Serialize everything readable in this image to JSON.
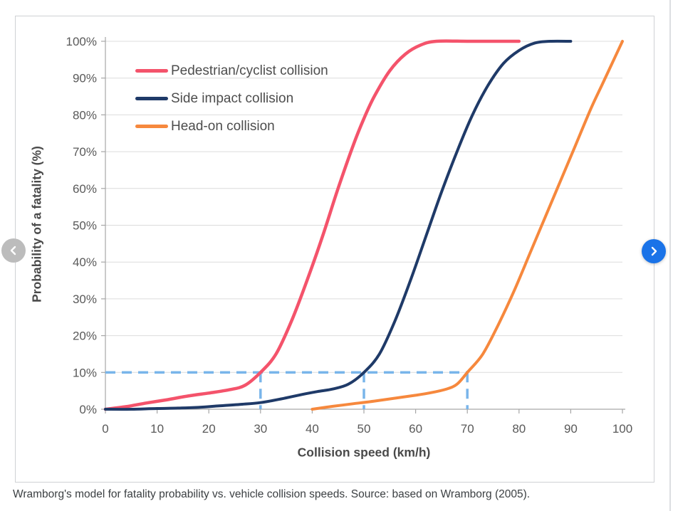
{
  "page": {
    "caption": "Wramborg's model for fatality probability vs. vehicle collision speeds. Source: based on Wramborg (2005)."
  },
  "carousel": {
    "prev_button_color": "#bcbcbc",
    "next_button_color": "#1a73e8",
    "arrow_color": "#ffffff"
  },
  "chart_data": {
    "type": "line",
    "title": "",
    "xlabel": "Collision speed (km/h)",
    "ylabel": "Probability of a fatality (%)",
    "xlim": [
      0,
      100
    ],
    "ylim": [
      0,
      100
    ],
    "x_ticks": [
      0,
      10,
      20,
      30,
      40,
      50,
      60,
      70,
      80,
      90,
      100
    ],
    "y_ticks": [
      0,
      10,
      20,
      30,
      40,
      50,
      60,
      70,
      80,
      90,
      100
    ],
    "y_tick_suffix": "%",
    "grid": "horizontal-only",
    "legend_position": "top-left-inside",
    "series": [
      {
        "name": "Pedestrian/cyclist collision",
        "color": "#f4536b",
        "points": [
          [
            0,
            0
          ],
          [
            4,
            0.7
          ],
          [
            8,
            1.7
          ],
          [
            12,
            2.6
          ],
          [
            16,
            3.6
          ],
          [
            20,
            4.4
          ],
          [
            24,
            5.3
          ],
          [
            27,
            6.5
          ],
          [
            30,
            10
          ],
          [
            33,
            15
          ],
          [
            36,
            24
          ],
          [
            39,
            35
          ],
          [
            42,
            47
          ],
          [
            45,
            60
          ],
          [
            48,
            72
          ],
          [
            50,
            79
          ],
          [
            52,
            85
          ],
          [
            55,
            92
          ],
          [
            58,
            96.5
          ],
          [
            61,
            99
          ],
          [
            64,
            100
          ],
          [
            70,
            100
          ],
          [
            75,
            100
          ],
          [
            80,
            100
          ]
        ]
      },
      {
        "name": "Side impact collision",
        "color": "#1f3a68",
        "points": [
          [
            0,
            0
          ],
          [
            5,
            0
          ],
          [
            10,
            0.2
          ],
          [
            14,
            0.3
          ],
          [
            18,
            0.5
          ],
          [
            22,
            0.9
          ],
          [
            26,
            1.3
          ],
          [
            30,
            1.8
          ],
          [
            34,
            2.8
          ],
          [
            38,
            4
          ],
          [
            41,
            4.8
          ],
          [
            44,
            5.5
          ],
          [
            47,
            6.8
          ],
          [
            50,
            10
          ],
          [
            53,
            15
          ],
          [
            56,
            24
          ],
          [
            59,
            35
          ],
          [
            62,
            47
          ],
          [
            65,
            59
          ],
          [
            68,
            70
          ],
          [
            71,
            80
          ],
          [
            74,
            88
          ],
          [
            77,
            94
          ],
          [
            80,
            97.5
          ],
          [
            83,
            99.5
          ],
          [
            86,
            100
          ],
          [
            90,
            100
          ]
        ]
      },
      {
        "name": "Head-on collision",
        "color": "#f6883d",
        "points": [
          [
            40,
            0
          ],
          [
            44,
            0.8
          ],
          [
            48,
            1.5
          ],
          [
            52,
            2.2
          ],
          [
            56,
            3
          ],
          [
            60,
            3.8
          ],
          [
            63,
            4.5
          ],
          [
            66,
            5.5
          ],
          [
            68,
            6.8
          ],
          [
            70,
            10
          ],
          [
            73,
            15
          ],
          [
            76,
            23
          ],
          [
            79,
            32
          ],
          [
            82,
            42
          ],
          [
            85,
            52
          ],
          [
            88,
            62
          ],
          [
            91,
            72
          ],
          [
            94,
            82
          ],
          [
            96,
            88
          ],
          [
            98,
            94
          ],
          [
            100,
            100
          ]
        ]
      }
    ],
    "guides": {
      "color": "#79b5ea",
      "fatality_level_pct": 10,
      "speeds_at_level": [
        30,
        50,
        70
      ]
    }
  }
}
